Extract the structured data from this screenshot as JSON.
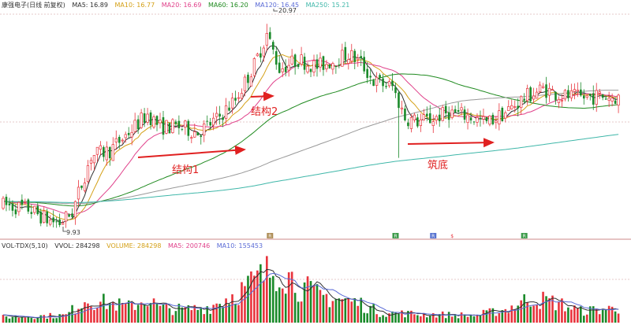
{
  "price_header": {
    "title": "康强电子(日线 前复权)",
    "items": [
      {
        "label": "MA5: 16.89",
        "color": "#2f2f2f"
      },
      {
        "label": "MA10: 16.77",
        "color": "#d4a017"
      },
      {
        "label": "MA20: 16.69",
        "color": "#e0408a"
      },
      {
        "label": "MA60: 16.20",
        "color": "#1f8a1f"
      },
      {
        "label": "MA120: 16.45",
        "color": "#5a6bd6"
      },
      {
        "label": "MA250: 15.21",
        "color": "#3fb7a9"
      }
    ]
  },
  "volume_header": {
    "title": "VOL-TDX(5,10)",
    "items": [
      {
        "label": "VVOL: 284298",
        "color": "#2f2f2f"
      },
      {
        "label": "VOLUME: 284298",
        "color": "#d4a017"
      },
      {
        "label": "MA5: 200746",
        "color": "#e0408a"
      },
      {
        "label": "MA10: 155453",
        "color": "#5a6bd6"
      }
    ]
  },
  "annotations": {
    "high_label": "20.97",
    "low_label": "9.93",
    "structure1": "结构1",
    "structure2": "结构2",
    "bottom": "筑底"
  },
  "colors": {
    "up": "#e8333c",
    "down": "#1a8a2a",
    "arrow": "#e02020",
    "grid": "#e4c9c9"
  },
  "chart_data": {
    "type": "candlestick",
    "series_names": [
      "MA5",
      "MA10",
      "MA20",
      "MA60",
      "MA120",
      "MA250",
      "VOLUME"
    ],
    "ylim": [
      9.3,
      21.5
    ],
    "high": 20.97,
    "low": 9.93,
    "price_control_points": [
      [
        0,
        11.0
      ],
      [
        8,
        10.8
      ],
      [
        14,
        10.2
      ],
      [
        18,
        10.0
      ],
      [
        22,
        10.6
      ],
      [
        28,
        13.7
      ],
      [
        34,
        14.0
      ],
      [
        40,
        15.0
      ],
      [
        46,
        16.0
      ],
      [
        50,
        15.3
      ],
      [
        56,
        15.3
      ],
      [
        62,
        15.0
      ],
      [
        68,
        15.7
      ],
      [
        74,
        16.8
      ],
      [
        80,
        18.7
      ],
      [
        84,
        20.4
      ],
      [
        88,
        18.5
      ],
      [
        94,
        19.0
      ],
      [
        100,
        18.6
      ],
      [
        106,
        19.0
      ],
      [
        110,
        19.3
      ],
      [
        114,
        18.8
      ],
      [
        118,
        17.8
      ],
      [
        124,
        17.5
      ],
      [
        128,
        15.8
      ],
      [
        132,
        15.6
      ],
      [
        136,
        15.7
      ],
      [
        142,
        16.1
      ],
      [
        148,
        15.9
      ],
      [
        154,
        15.5
      ],
      [
        160,
        16.1
      ],
      [
        166,
        16.9
      ],
      [
        172,
        17.4
      ],
      [
        178,
        17.0
      ],
      [
        184,
        16.9
      ],
      [
        190,
        17.0
      ],
      [
        196,
        16.9
      ]
    ],
    "volume_control_points": [
      [
        0,
        0.08
      ],
      [
        20,
        0.1
      ],
      [
        26,
        0.32
      ],
      [
        32,
        0.28
      ],
      [
        40,
        0.22
      ],
      [
        46,
        0.33
      ],
      [
        50,
        0.2
      ],
      [
        58,
        0.18
      ],
      [
        66,
        0.22
      ],
      [
        76,
        0.45
      ],
      [
        82,
        0.62
      ],
      [
        88,
        0.78
      ],
      [
        94,
        0.52
      ],
      [
        100,
        0.38
      ],
      [
        108,
        0.32
      ],
      [
        114,
        0.26
      ],
      [
        120,
        0.14
      ],
      [
        132,
        0.12
      ],
      [
        150,
        0.1
      ],
      [
        160,
        0.18
      ],
      [
        168,
        0.34
      ],
      [
        176,
        0.28
      ],
      [
        184,
        0.16
      ],
      [
        196,
        0.2
      ]
    ],
    "markers": [
      {
        "text": "R",
        "color": "#a07a3a"
      },
      {
        "text": "R",
        "color": "#1a8a2a"
      },
      {
        "text": "R",
        "color": "#3a5ac8"
      },
      {
        "text": "$",
        "color": "#e8333c"
      },
      {
        "text": "R",
        "color": "#1a8a2a"
      }
    ]
  }
}
